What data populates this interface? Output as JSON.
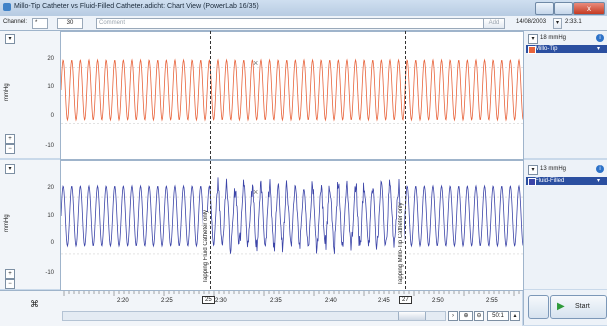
{
  "window": {
    "title": "Millo-Tip Catheter vs Fluid-Filled Catheter.adicht: Chart View (PowerLab 16/35)",
    "close_glyph": "x"
  },
  "toolbar": {
    "channel_label": "Channel:",
    "channel_value": "*",
    "comment_number": "30",
    "comment_placeholder": "Comment",
    "add_label": "Add",
    "date": "14/08/2003",
    "time": "2:33.1"
  },
  "channels": [
    {
      "range_label": "18 mmHg",
      "name": "Millo-Tip",
      "unit": "mmHg",
      "color": "#e8643c",
      "ticks": [
        "20",
        "10",
        "0",
        "-10"
      ]
    },
    {
      "range_label": "13 mmHg",
      "name": "Fluid-Filled",
      "unit": "mmHg",
      "color": "#3c45a8",
      "ticks": [
        "20",
        "10",
        "0",
        "-10"
      ]
    }
  ],
  "comments": [
    {
      "number": "25",
      "text": "Tapping Fluid Catheter only"
    },
    {
      "number": "27",
      "text": "Tapping Millo-Tip Catheter only"
    }
  ],
  "time_axis": {
    "labels": [
      "2:20",
      "2:25",
      "2:30",
      "2:35",
      "2:40",
      "2:45",
      "2:50",
      "2:55"
    ]
  },
  "bottom_controls": {
    "zoom": "50:1",
    "start_label": "Start"
  },
  "icons": {
    "app": "app-icon",
    "collapse": "triangle-down-icon",
    "info": "info-icon",
    "dropdown": "chevron-down-icon",
    "plus": "plus-icon",
    "minus": "minus-icon",
    "marker": "marker-icon",
    "start": "play-icon"
  }
}
